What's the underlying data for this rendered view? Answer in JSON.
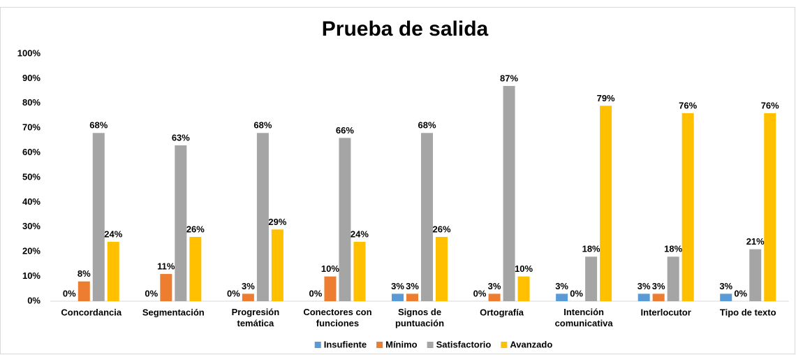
{
  "chart_data": {
    "type": "bar",
    "title": "Prueba de salida",
    "categories": [
      "Concordancia",
      "Segmentación",
      "Progresión temática",
      "Conectores con funciones",
      "Signos de puntuación",
      "Ortografía",
      "Intención comunicativa",
      "Interlocutor",
      "Tipo de texto"
    ],
    "series": [
      {
        "name": "Insufiente",
        "color": "#5b9bd5",
        "values": [
          0,
          0,
          0,
          0,
          3,
          0,
          3,
          3,
          3
        ],
        "value_labels": [
          "0%",
          "0%",
          "0%",
          "0%",
          "3%",
          "0%",
          "3%",
          "3%",
          "3%"
        ]
      },
      {
        "name": "Mínimo",
        "color": "#ed7d31",
        "values": [
          8,
          11,
          3,
          10,
          3,
          3,
          0,
          3,
          0
        ],
        "value_labels": [
          "8%",
          "11%",
          "3%",
          "10%",
          "3%",
          "3%",
          "0%",
          "3%",
          "0%"
        ]
      },
      {
        "name": "Satisfactorio",
        "color": "#a5a5a5",
        "values": [
          68,
          63,
          68,
          66,
          68,
          87,
          18,
          18,
          21
        ],
        "value_labels": [
          "68%",
          "63%",
          "68%",
          "66%",
          "68%",
          "87%",
          "18%",
          "18%",
          "21%"
        ]
      },
      {
        "name": "Avanzado",
        "color": "#ffc000",
        "values": [
          24,
          26,
          29,
          24,
          26,
          10,
          79,
          76,
          76
        ],
        "value_labels": [
          "24%",
          "26%",
          "29%",
          "24%",
          "26%",
          "10%",
          "79%",
          "76%",
          "76%"
        ]
      }
    ],
    "ylim": [
      0,
      100
    ],
    "yticks": [
      {
        "value": 0,
        "label": "0%"
      },
      {
        "value": 10,
        "label": "10%"
      },
      {
        "value": 20,
        "label": "20%"
      },
      {
        "value": 30,
        "label": "30%"
      },
      {
        "value": 40,
        "label": "40%"
      },
      {
        "value": 50,
        "label": "50%"
      },
      {
        "value": 60,
        "label": "60%"
      },
      {
        "value": 70,
        "label": "70%"
      },
      {
        "value": 80,
        "label": "80%"
      },
      {
        "value": 90,
        "label": "90%"
      },
      {
        "value": 100,
        "label": "100%"
      }
    ],
    "grid": false,
    "legend": "bottom"
  }
}
